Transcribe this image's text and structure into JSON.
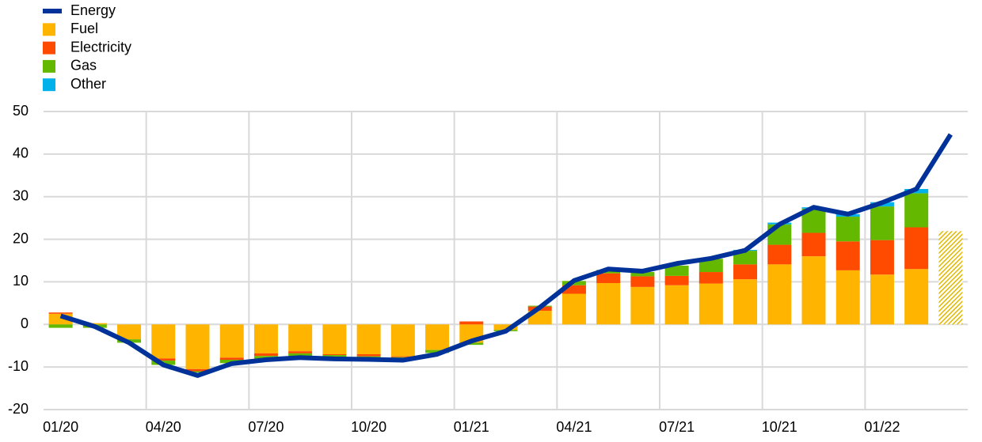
{
  "chart_data": {
    "type": "bar",
    "stacked": true,
    "categories": [
      "01/20",
      null,
      null,
      "04/20",
      null,
      null,
      "07/20",
      null,
      null,
      "10/20",
      null,
      null,
      "01/21",
      null,
      null,
      "04/21",
      null,
      null,
      "07/21",
      null,
      null,
      "10/21",
      null,
      null,
      "01/22",
      null,
      null
    ],
    "series": [
      {
        "name": "Energy",
        "type": "line",
        "color": "#003299",
        "values": [
          2.0,
          -0.5,
          -4.3,
          -9.5,
          -12.0,
          -9.2,
          -8.3,
          -7.8,
          -8.1,
          -8.2,
          -8.4,
          -7.0,
          -3.9,
          -1.6,
          4.0,
          10.3,
          13.0,
          12.5,
          14.3,
          15.5,
          17.4,
          23.5,
          27.5,
          25.9,
          28.6,
          31.8,
          44.6
        ]
      },
      {
        "name": "Fuel",
        "color": "#ffb400",
        "values": [
          2.5,
          0.3,
          -3.5,
          -8.0,
          -10.5,
          -7.8,
          -6.8,
          -6.3,
          -7.0,
          -7.0,
          -7.5,
          -6.0,
          -4.3,
          -1.3,
          3.2,
          7.2,
          9.7,
          8.8,
          9.2,
          9.6,
          10.6,
          14.1,
          16.0,
          12.7,
          11.7,
          13.0,
          21.9
        ]
      },
      {
        "name": "Electricity",
        "color": "#ff4b00",
        "values": [
          0.3,
          null,
          null,
          -0.5,
          -0.5,
          -0.5,
          -0.6,
          -0.5,
          -0.2,
          -0.5,
          -0.2,
          null,
          0.7,
          null,
          1.0,
          2.0,
          2.3,
          2.5,
          2.2,
          2.7,
          3.5,
          4.6,
          5.5,
          6.8,
          8.1,
          9.8,
          null
        ]
      },
      {
        "name": "Gas",
        "color": "#65b800",
        "values": [
          -0.8,
          -0.8,
          -0.8,
          -1.0,
          -0.3,
          -0.8,
          -0.8,
          -0.8,
          -0.8,
          -0.5,
          -0.3,
          -0.7,
          -0.5,
          -0.3,
          0.2,
          1.0,
          0.8,
          1.0,
          2.4,
          3.1,
          3.2,
          4.8,
          5.7,
          5.8,
          7.9,
          8.0,
          null
        ]
      },
      {
        "name": "Other",
        "color": "#00b1ea",
        "values": [
          null,
          null,
          null,
          null,
          null,
          null,
          null,
          null,
          null,
          null,
          null,
          null,
          null,
          null,
          null,
          null,
          null,
          null,
          null,
          null,
          0.2,
          0.4,
          0.3,
          0.6,
          1.0,
          1.0,
          null
        ]
      }
    ],
    "ylim": [
      -20,
      50
    ],
    "yticks": [
      -20,
      -10,
      0,
      10,
      20,
      30,
      40,
      50
    ],
    "grid": true
  }
}
